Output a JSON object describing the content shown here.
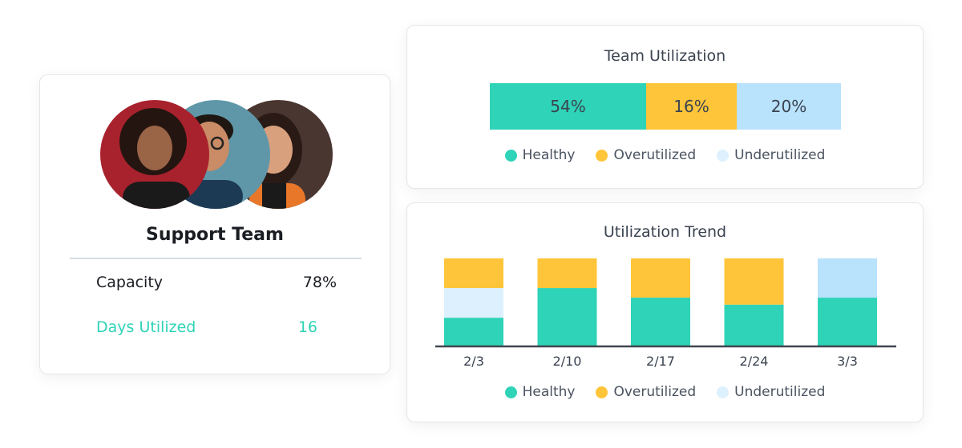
{
  "team_card": {
    "name": "Support Team",
    "members": [
      {
        "avatar": "person-woman-curly-hair",
        "bg": "#a8222e"
      },
      {
        "avatar": "person-man-glasses",
        "bg": "#5f97a8"
      },
      {
        "avatar": "person-woman-long-hair",
        "bg": "#4a3630"
      }
    ],
    "stats": [
      {
        "label": "Capacity",
        "value": "78%"
      },
      {
        "label": "Days Utilized",
        "value": "16"
      }
    ]
  },
  "colors": {
    "healthy": "#2fd3b7",
    "overutilized": "#ffc53a",
    "underutilized": "#b9e2fd",
    "underutilized_light": "#dcf1fd",
    "accent": "#2fd3b7"
  },
  "utilization": {
    "title": "Team Utilization",
    "segments": [
      {
        "key": "healthy",
        "label": "54%"
      },
      {
        "key": "overutilized",
        "label": "16%"
      },
      {
        "key": "underutilized",
        "label": "20%"
      }
    ],
    "legend": [
      "Healthy",
      "Overutilized",
      "Underutilized"
    ]
  },
  "chart_data": {
    "type": "bar",
    "stacked": true,
    "title": "Utilization Trend",
    "categories": [
      "2/3",
      "2/10",
      "2/17",
      "2/24",
      "3/3"
    ],
    "series": [
      {
        "name": "Healthy",
        "values": [
          32,
          66,
          55,
          47,
          55
        ]
      },
      {
        "name": "Underutilized",
        "values": [
          34,
          0,
          0,
          0,
          45
        ]
      },
      {
        "name": "Overutilized",
        "values": [
          34,
          34,
          45,
          53,
          0
        ]
      }
    ],
    "ylim": [
      0,
      100
    ],
    "grid": false,
    "legend_position": "bottom",
    "legend": [
      "Healthy",
      "Overutilized",
      "Underutilized"
    ]
  }
}
